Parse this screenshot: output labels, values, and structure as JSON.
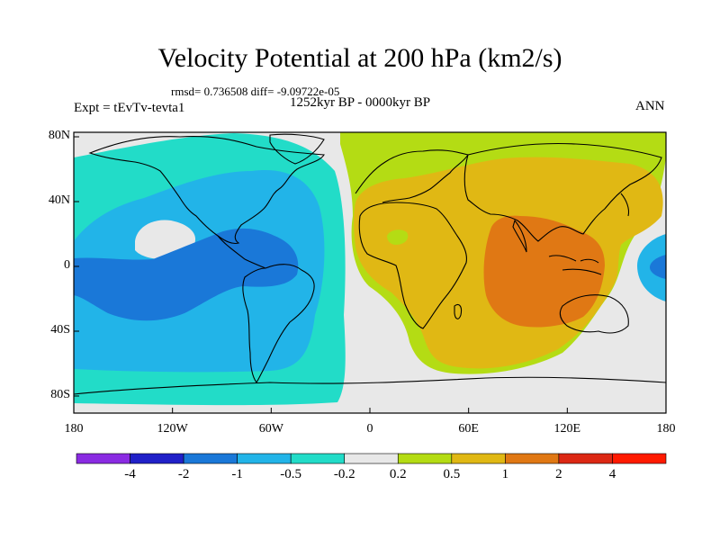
{
  "title": "Velocity Potential at 200 hPa (km2/s)",
  "stats_line": "rmsd= 0.736508 diff= -9.09722e-05",
  "left_label": "Expt = tEvTv-tevta1",
  "center_label": "1252kyr BP - 0000kyr BP",
  "right_label": "ANN",
  "lat_ticks": [
    "80N",
    "40N",
    "0",
    "40S",
    "80S"
  ],
  "lon_ticks": [
    "180",
    "120W",
    "60W",
    "0",
    "60E",
    "120E",
    "180"
  ],
  "colorbar": {
    "labels": [
      "-4",
      "-2",
      "-1",
      "-0.5",
      "-0.2",
      "0.2",
      "0.5",
      "1",
      "2",
      "4"
    ],
    "colors": [
      "#8a2be2",
      "#2020c8",
      "#1a78d8",
      "#22b4e8",
      "#22dcc8",
      "#e8e8e8",
      "#b4dc14",
      "#e0b814",
      "#e07814",
      "#dc2814",
      "#ff1a00"
    ]
  },
  "field_colors": {
    "background": "#e8e8e8",
    "neg_02": "#22dcc8",
    "neg_05": "#22b4e8",
    "neg_1": "#1a78d8",
    "pos_02": "#b4dc14",
    "pos_05": "#e0b814",
    "pos_1": "#e07814",
    "coast": "#000000"
  }
}
